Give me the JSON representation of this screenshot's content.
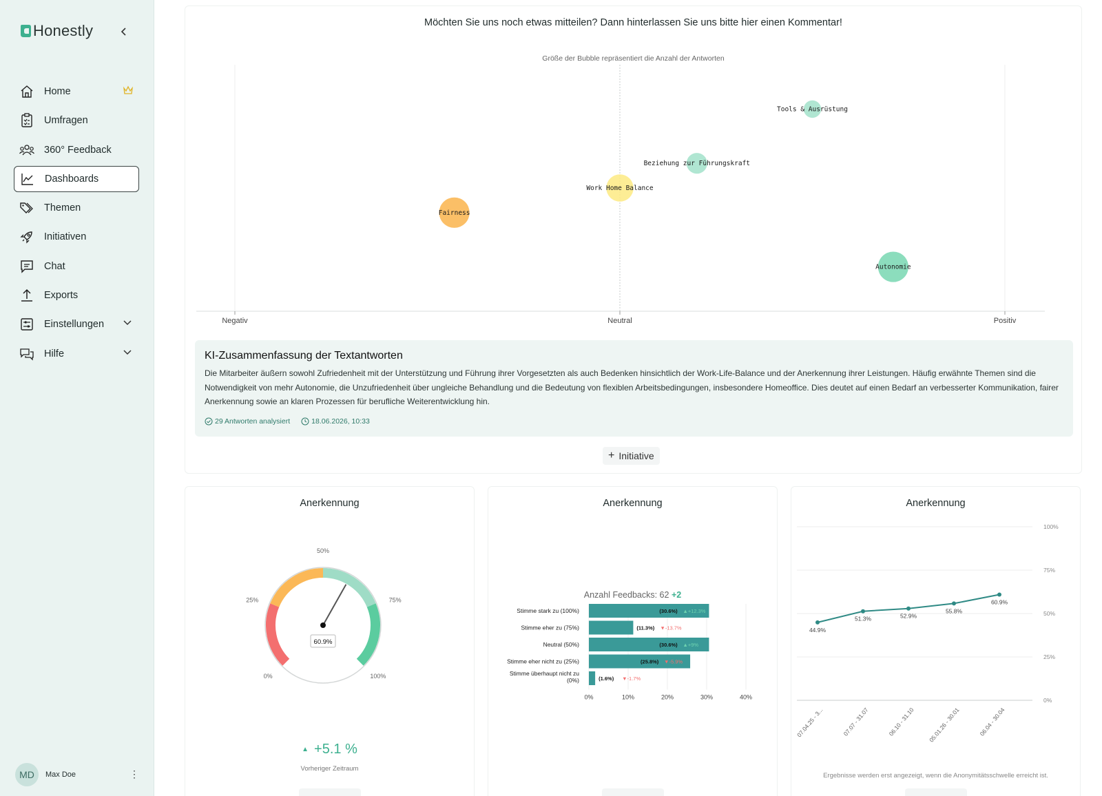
{
  "app": {
    "name": "Honestly"
  },
  "sidebar": {
    "items": [
      {
        "label": "Home",
        "icon": "home-icon",
        "badge": "crown-icon"
      },
      {
        "label": "Umfragen",
        "icon": "clipboard-icon"
      },
      {
        "label": "360° Feedback",
        "icon": "people-icon"
      },
      {
        "label": "Dashboards",
        "icon": "line-chart-icon",
        "active": true
      },
      {
        "label": "Themen",
        "icon": "tags-icon"
      },
      {
        "label": "Initiativen",
        "icon": "rocket-icon"
      },
      {
        "label": "Chat",
        "icon": "chat-icon"
      },
      {
        "label": "Exports",
        "icon": "upload-icon"
      },
      {
        "label": "Einstellungen",
        "icon": "settings-sliders-icon",
        "expandable": true
      },
      {
        "label": "Hilfe",
        "icon": "help-chat-icon",
        "expandable": true
      }
    ],
    "user": {
      "initials": "MD",
      "name": "Max Doe"
    }
  },
  "question_card": {
    "title": "Möchten Sie uns noch etwas mitteilen? Dann hinterlassen Sie uns bitte hier einen Kommentar!",
    "bubble_subtitle": "Größe der Bubble repräsentiert die Anzahl der Antworten",
    "summary": {
      "title": "KI-Zusammenfassung der Textantworten",
      "text": "Die Mitarbeiter äußern sowohl Zufriedenheit mit der Unterstützung und Führung ihrer Vorgesetzten als auch Bedenken hinsichtlich der Work-Life-Balance und der Anerkennung ihrer Leistungen. Häufig erwähnte Themen sind die Notwendigkeit von mehr Autonomie, die Unzufriedenheit über ungleiche Behandlung und die Bedeutung von flexiblen Arbeitsbedingungen, insbesondere Homeoffice. Dies deutet auf einen Bedarf an verbesserter Kommunikation, fairer Anerkennung sowie an klaren Prozessen für berufliche Weiterentwicklung hin.",
      "analyzed": "29 Antworten analysiert",
      "timestamp": "18.06.2026, 10:33"
    },
    "initiative_label": "Initiative"
  },
  "gauge_card": {
    "title": "Anerkennung",
    "value_label": "60.9%",
    "delta": "+5.1 %",
    "delta_caption": "Vorheriger Zeitraum"
  },
  "bar_card": {
    "title": "Anerkennung",
    "count_label": "Anzahl Feedbacks: 62",
    "count_delta": "+2"
  },
  "line_card": {
    "title": "Anerkennung",
    "note": "Ergebnisse werden erst angezeigt, wenn die Anonymitätsschwelle erreicht ist."
  },
  "colors": {
    "accent": "#3db08f",
    "teal": "#3a9a98",
    "negative": "#f36f6f",
    "orange": "#fbb857",
    "yellow": "#fdeb8a",
    "mint": "#7fd9b6"
  },
  "chart_data": [
    {
      "type": "scatter",
      "title": "",
      "subtitle": "Größe der Bubble repräsentiert die Anzahl der Antworten",
      "x_axis_labels": [
        "Negativ",
        "Neutral",
        "Positiv"
      ],
      "xlim": [
        -1,
        1
      ],
      "ylim": [
        0,
        1
      ],
      "points": [
        {
          "label": "Fairness",
          "x": -0.43,
          "y": 0.4,
          "size": 3,
          "color": "#fbb857"
        },
        {
          "label": "Work Home Balance",
          "x": 0.0,
          "y": 0.5,
          "size": 2.5,
          "color": "#fdeb8a"
        },
        {
          "label": "Beziehung zur Führungskraft",
          "x": 0.2,
          "y": 0.6,
          "size": 1.5,
          "color": "#a7e3cd"
        },
        {
          "label": "Tools & Ausrüstung",
          "x": 0.5,
          "y": 0.82,
          "size": 1,
          "color": "#a7e3cd"
        },
        {
          "label": "Autonomie",
          "x": 0.71,
          "y": 0.18,
          "size": 3,
          "color": "#7fd9b6"
        }
      ]
    },
    {
      "type": "gauge",
      "title": "Anerkennung",
      "value": 60.9,
      "unit": "%",
      "tick_labels": [
        "0%",
        "25%",
        "50%",
        "75%",
        "100%"
      ],
      "segments": [
        {
          "from": 0,
          "to": 25,
          "color": "#f36f6f"
        },
        {
          "from": 25,
          "to": 50,
          "color": "#fbb857"
        },
        {
          "from": 50,
          "to": 75,
          "color": "#9fdcc6"
        },
        {
          "from": 75,
          "to": 100,
          "color": "#5bcc9f"
        }
      ]
    },
    {
      "type": "bar",
      "orientation": "horizontal",
      "title": "Anerkennung",
      "categories": [
        "Stimme stark zu (100%)",
        "Stimme eher zu (75%)",
        "Neutral (50%)",
        "Stimme eher nicht zu (25%)",
        "Stimme überhaupt nicht zu (0%)"
      ],
      "values": [
        30.6,
        11.3,
        30.6,
        25.8,
        1.6
      ],
      "value_labels": [
        "(30.6%)",
        "(11.3%)",
        "(30.6%)",
        "(25.8%)",
        "(1.6%)"
      ],
      "changes": [
        "+12.3%",
        "-13.7%",
        "+9%",
        "-5.9%",
        "-1.7%"
      ],
      "xlim": [
        0,
        40
      ],
      "x_ticks": [
        "0%",
        "10%",
        "20%",
        "30%",
        "40%"
      ]
    },
    {
      "type": "line",
      "title": "Anerkennung",
      "categories": [
        "07.04.25 - 3...",
        "07.07 - 31.07",
        "06.10 - 31.10",
        "05.01.26 - 30.01",
        "06.04 - 30.04"
      ],
      "values": [
        44.9,
        51.3,
        52.9,
        55.8,
        60.9
      ],
      "value_labels": [
        "44.9%",
        "51.3%",
        "52.9%",
        "55.8%",
        "60.9%"
      ],
      "ylim": [
        0,
        100
      ],
      "y_ticks": [
        "0%",
        "25%",
        "50%",
        "75%",
        "100%"
      ]
    }
  ]
}
